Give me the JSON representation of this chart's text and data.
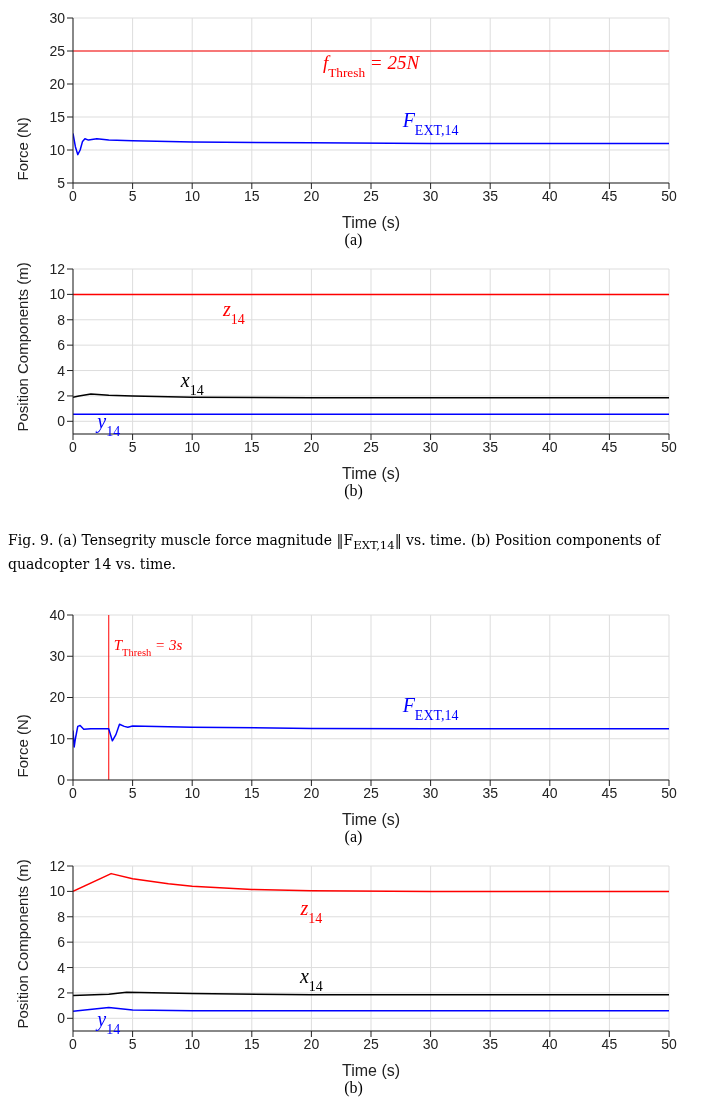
{
  "chart_data": [
    {
      "type": "line",
      "xlabel": "Time (s)",
      "ylabel": "Force (N)",
      "xlim": [
        0,
        50
      ],
      "xticks": [
        0,
        5,
        10,
        15,
        20,
        25,
        30,
        35,
        40,
        45,
        50
      ],
      "ylim": [
        5,
        30
      ],
      "yticks": [
        5,
        10,
        15,
        20,
        25,
        30
      ],
      "grid": true,
      "legend": false,
      "line_style": "solid",
      "marker": "none",
      "series": [
        {
          "name": "F$_{EXT,14}$",
          "color": "#0000ff",
          "x": [
            0,
            0.2,
            0.4,
            0.6,
            0.8,
            1.0,
            1.3,
            2,
            3,
            5,
            10,
            20,
            30,
            40,
            50
          ],
          "values": [
            12.5,
            10.5,
            9.3,
            10.0,
            11.3,
            11.7,
            11.5,
            11.7,
            11.5,
            11.4,
            11.2,
            11.1,
            11.0,
            11.0,
            11.0
          ]
        }
      ],
      "ref_lines": [
        {
          "axis": "y",
          "value": 25,
          "label": "f$_{Thresh}$ = 25N",
          "color": "#ff0000"
        }
      ],
      "annotations": [
        "(a)"
      ]
    },
    {
      "type": "line",
      "xlabel": "Time (s)",
      "ylabel": "Position Components (m)",
      "xlim": [
        0,
        50
      ],
      "xticks": [
        0,
        5,
        10,
        15,
        20,
        25,
        30,
        35,
        40,
        45,
        50
      ],
      "ylim": [
        -1,
        12
      ],
      "yticks": [
        0,
        2,
        4,
        6,
        8,
        10,
        12
      ],
      "grid": true,
      "legend": false,
      "line_style": "solid",
      "marker": "none",
      "series": [
        {
          "name": "z$_{14}$",
          "color": "#ff0000",
          "x": [
            0,
            50
          ],
          "values": [
            10,
            10
          ]
        },
        {
          "name": "x$_{14}$",
          "color": "#000000",
          "x": [
            0,
            0.5,
            1.5,
            3,
            5,
            10,
            20,
            50
          ],
          "values": [
            1.9,
            2.0,
            2.15,
            2.05,
            2.0,
            1.9,
            1.85,
            1.85
          ]
        },
        {
          "name": "y$_{14}$",
          "color": "#0000ff",
          "x": [
            0,
            50
          ],
          "values": [
            0.55,
            0.55
          ]
        }
      ],
      "annotations": [
        "(b)",
        "Fig. 9. (a) Tensegrity muscle force magnitude ‖F$_{EXT,14}$‖ vs. time. (b) Position components of quadcopter 14 vs. time."
      ]
    },
    {
      "type": "line",
      "xlabel": "Time (s)",
      "ylabel": "Force (N)",
      "xlim": [
        0,
        50
      ],
      "xticks": [
        0,
        5,
        10,
        15,
        20,
        25,
        30,
        35,
        40,
        45,
        50
      ],
      "ylim": [
        0,
        40
      ],
      "yticks": [
        0,
        10,
        20,
        30,
        40
      ],
      "grid": true,
      "legend": false,
      "line_style": "solid",
      "marker": "none",
      "series": [
        {
          "name": "F$_{EXT,14}$",
          "color": "#0000ff",
          "x": [
            0,
            0.1,
            0.2,
            0.4,
            0.6,
            0.9,
            1.5,
            3,
            3.3,
            3.6,
            3.9,
            4.3,
            4.6,
            5,
            10,
            20,
            30,
            50
          ],
          "values": [
            12,
            8,
            10,
            13,
            13.2,
            12.3,
            12.4,
            12.4,
            9.5,
            11,
            13.5,
            13,
            12.8,
            13.1,
            12.8,
            12.5,
            12.4,
            12.4
          ]
        }
      ],
      "ref_lines": [
        {
          "axis": "x",
          "value": 3,
          "label": "T$_{Thresh}$ = 3s",
          "color": "#ff0000"
        }
      ],
      "annotations": [
        "(a)"
      ]
    },
    {
      "type": "line",
      "xlabel": "Time (s)",
      "ylabel": "Position Components (m)",
      "xlim": [
        0,
        50
      ],
      "xticks": [
        0,
        5,
        10,
        15,
        20,
        25,
        30,
        35,
        40,
        45,
        50
      ],
      "ylim": [
        -1,
        12
      ],
      "yticks": [
        0,
        2,
        4,
        6,
        8,
        10,
        12
      ],
      "grid": true,
      "legend": false,
      "line_style": "solid",
      "marker": "none",
      "series": [
        {
          "name": "z$_{14}$",
          "color": "#ff0000",
          "x": [
            0,
            3.2,
            5,
            8,
            10,
            15,
            20,
            30,
            50
          ],
          "values": [
            10,
            11.4,
            11,
            10.6,
            10.4,
            10.15,
            10.05,
            10.0,
            10.0
          ]
        },
        {
          "name": "x$_{14}$",
          "color": "#000000",
          "x": [
            0,
            3,
            4.5,
            10,
            20,
            50
          ],
          "values": [
            1.8,
            1.9,
            2.05,
            1.95,
            1.85,
            1.85
          ]
        },
        {
          "name": "y$_{14}$",
          "color": "#0000ff",
          "x": [
            0,
            3,
            5,
            10,
            50
          ],
          "values": [
            0.55,
            0.85,
            0.65,
            0.6,
            0.6
          ]
        }
      ],
      "annotations": [
        "(b)"
      ]
    }
  ]
}
